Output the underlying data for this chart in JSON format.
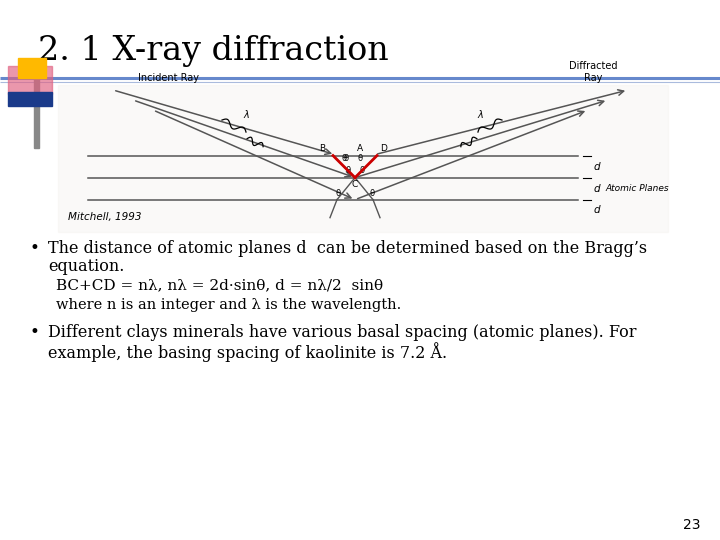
{
  "title": "2. 1 X-ray diffraction",
  "title_fontsize": 24,
  "title_color": "#000000",
  "background_color": "#ffffff",
  "slide_number": "23",
  "mitchell_credit": "Mitchell, 1993",
  "bullet1_line1": "The distance of atomic planes d  can be determined based on the Bragg’s",
  "bullet1_line2": "equation.",
  "bullet1_eq": "BC+CD = nλ, nλ = 2d·sinθ, d = nλ/2  sinθ",
  "bullet1_sub": "where n is an integer and λ is the wavelength.",
  "bullet2_line1": "Different clays minerals have various basal spacing (atomic planes). For",
  "bullet2_line2": "example, the basing spacing of kaolinite is 7.2 Å.",
  "header_line_color": "#6688CC",
  "header_line2_color": "#AABBDD",
  "accent_yellow": "#FFB900",
  "accent_blue": "#1a3a8a",
  "accent_pink": "#e06080",
  "left_bar_color": "#888888",
  "text_fontsize": 11.5,
  "eq_fontsize": 11,
  "sub_fontsize": 10.5,
  "diagram_bg": "#f0ede8",
  "diagram_line": "#555555",
  "red_color": "#cc0000",
  "incident_label": "Incident Ray",
  "diffracted_label": "Diffracted\nRay",
  "atomic_planes_label": "Atomic Planes"
}
